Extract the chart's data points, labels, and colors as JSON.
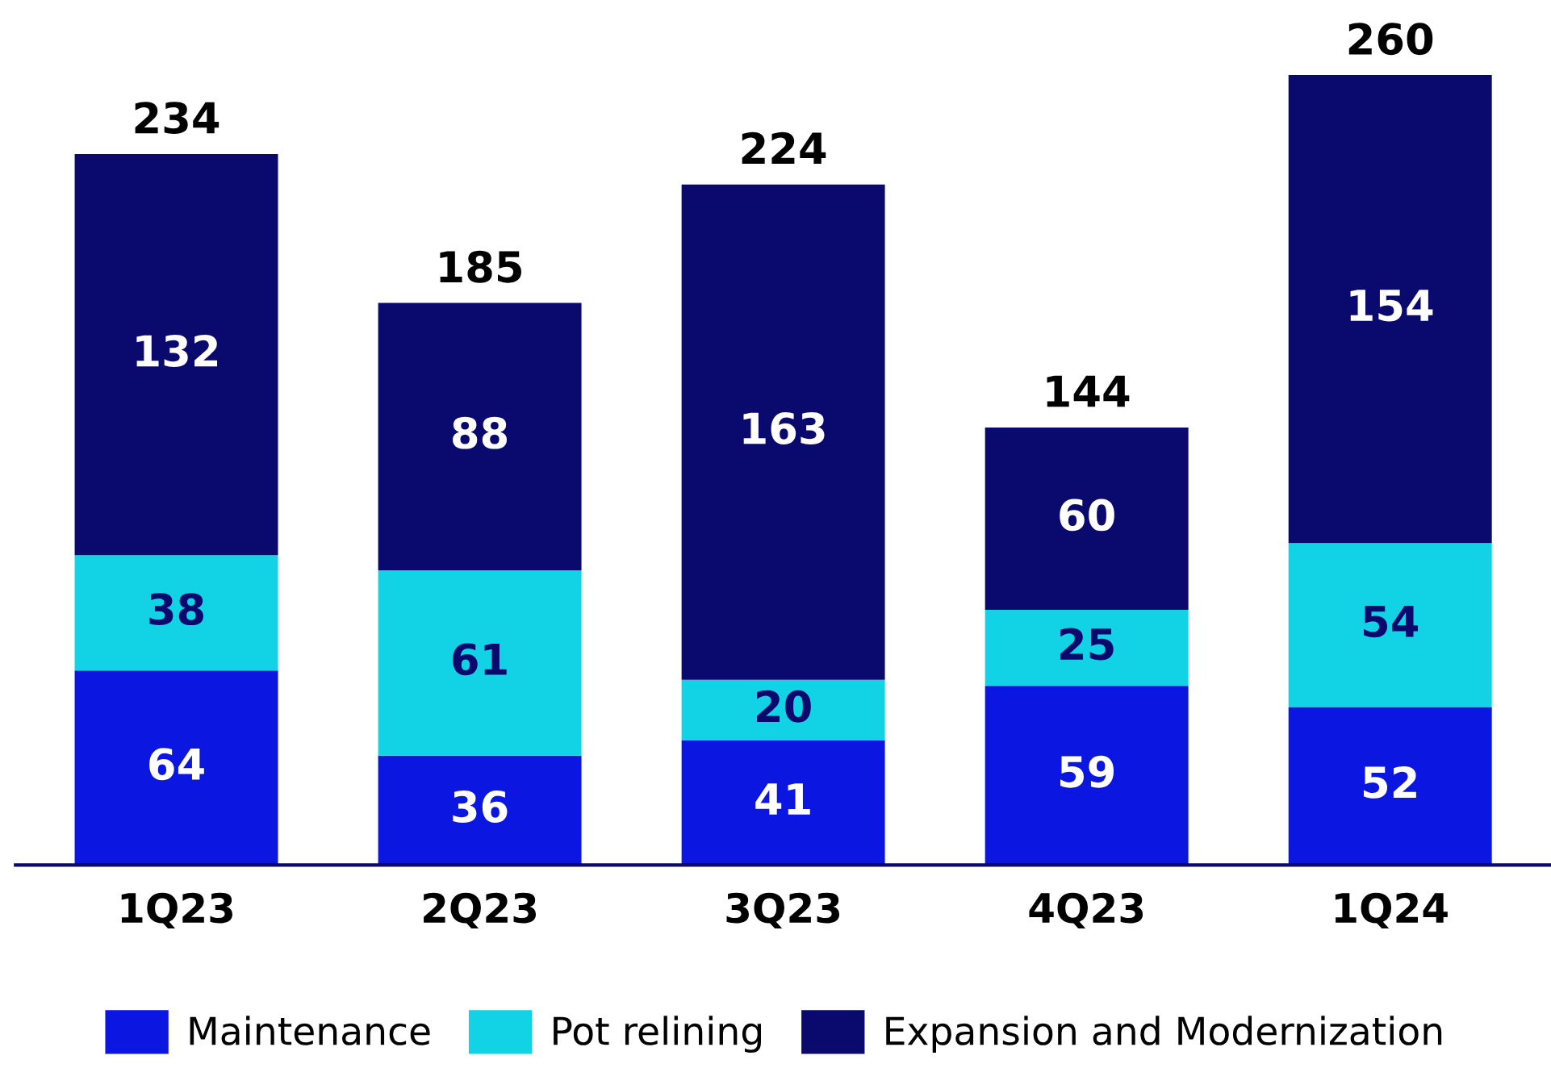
{
  "chart_data": {
    "type": "bar",
    "stacked": true,
    "categories": [
      "1Q23",
      "2Q23",
      "3Q23",
      "4Q23",
      "1Q24"
    ],
    "series": [
      {
        "name": "Maintenance",
        "color": "#0b17e0",
        "values": [
          64,
          36,
          41,
          59,
          52
        ]
      },
      {
        "name": "Pot relining",
        "color": "#12d3e6",
        "values": [
          38,
          61,
          20,
          25,
          54
        ]
      },
      {
        "name": "Expansion and Modernization",
        "color": "#0a0a6e",
        "values": [
          132,
          88,
          163,
          60,
          154
        ]
      }
    ],
    "data_labels": true,
    "totals": [
      "234",
      "185",
      "224",
      "144",
      "260"
    ],
    "legend": "bottom"
  }
}
